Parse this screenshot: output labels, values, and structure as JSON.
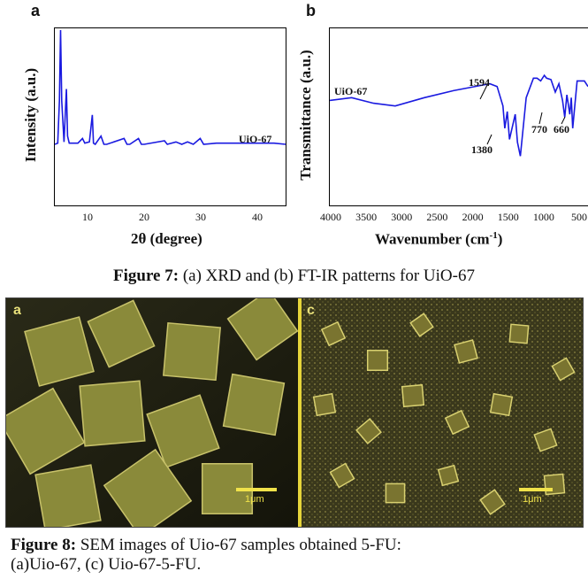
{
  "figure7": {
    "caption_bold": "Figure 7:",
    "caption_text": " (a) XRD and (b) FT-IR patterns for UiO-67",
    "panel_a": {
      "letter": "a",
      "xlabel": "2θ (degree)",
      "ylabel": "Intensity (a.u.)",
      "series_label": "UiO-67",
      "x_ticks": [
        "10",
        "20",
        "30",
        "40"
      ]
    },
    "panel_b": {
      "letter": "b",
      "xlabel": "Wavenumber (cm",
      "xlabel_sup": "-1",
      "xlabel_end": ")",
      "ylabel": "Transmittance (a.u.)",
      "series_label": "UiO-67",
      "x_ticks": [
        "4000",
        "3500",
        "3000",
        "2500",
        "2000",
        "1500",
        "1000",
        "500"
      ],
      "peak_labels": [
        "1594",
        "1380",
        "770",
        "660"
      ]
    }
  },
  "figure8": {
    "caption_bold": "Figure 8:",
    "caption_text": " SEM images of Uio-67 samples obtained 5-FU:",
    "caption_line2": "(a)Uio-67, (c) Uio-67-5-FU.",
    "left_letter": "a",
    "right_letter": "c",
    "left_scale": "1μm",
    "right_scale": "1μm"
  },
  "chart_data": [
    {
      "type": "line",
      "xlabel": "2θ (degree)",
      "ylabel": "Intensity (a.u.)",
      "xlim": [
        5,
        45
      ],
      "series": [
        {
          "name": "UiO-67",
          "x": [
            5,
            5.5,
            5.8,
            6.0,
            6.2,
            6.6,
            7.0,
            7.2,
            7.5,
            9.0,
            9.8,
            10.2,
            11.0,
            11.5,
            11.7,
            12.0,
            13.0,
            13.5,
            14.0,
            17.0,
            17.5,
            18.0,
            19.5,
            20.0,
            20.5,
            24.0,
            24.5,
            26.0,
            27.0,
            28.0,
            29.0,
            30.2,
            30.8,
            33.0,
            35.0,
            37.0,
            40.0,
            43.0,
            45
          ],
          "y": [
            3,
            4,
            40,
            100,
            40,
            5,
            50,
            10,
            4,
            4,
            8,
            4,
            5,
            28,
            4,
            3,
            10,
            3,
            3,
            8,
            3,
            3,
            8,
            3,
            3,
            6,
            3,
            5,
            3,
            5,
            3,
            8,
            3,
            4,
            4,
            4,
            4,
            4,
            3
          ]
        }
      ]
    },
    {
      "type": "line",
      "xlabel": "Wavenumber (cm-1)",
      "ylabel": "Transmittance (a.u.)",
      "xlim": [
        4000,
        450
      ],
      "series": [
        {
          "name": "UiO-67",
          "x": [
            4000,
            3700,
            3400,
            3100,
            2700,
            2300,
            1900,
            1800,
            1700,
            1620,
            1594,
            1560,
            1530,
            1450,
            1420,
            1380,
            1300,
            1200,
            1150,
            1100,
            1050,
            1020,
            960,
            900,
            850,
            800,
            770,
            740,
            700,
            680,
            660,
            600,
            500,
            450
          ],
          "y": [
            90,
            92,
            88,
            86,
            92,
            97,
            101,
            102,
            100,
            86,
            70,
            82,
            62,
            80,
            60,
            50,
            92,
            106,
            106,
            104,
            108,
            106,
            105,
            96,
            102,
            90,
            78,
            94,
            80,
            92,
            70,
            104,
            104,
            100
          ]
        }
      ]
    }
  ]
}
